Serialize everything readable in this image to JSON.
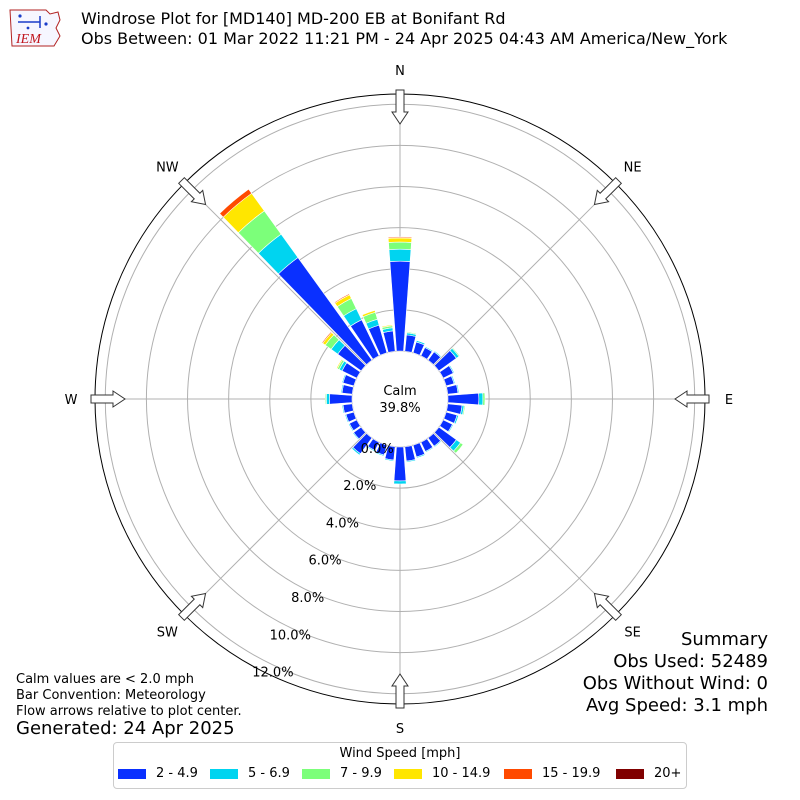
{
  "header": {
    "title": "Windrose Plot for [MD140] MD-200 EB at Bonifant Rd",
    "subtitle": "Obs Between: 01 Mar 2022 11:21 PM - 24 Apr 2025 04:43 AM America/New_York",
    "logo_text": "IEM"
  },
  "footer": {
    "calm_note": "Calm values are < 2.0 mph",
    "bar_convention": "Bar Convention: Meteorology",
    "flow_note": "Flow arrows relative to plot center.",
    "generated": "Generated: 24 Apr 2025"
  },
  "summary": {
    "heading": "Summary",
    "obs_used": "Obs Used: 52489",
    "obs_without_wind": "Obs Without Wind: 0",
    "avg_speed": "Avg Speed: 3.1 mph"
  },
  "legend": {
    "title": "Wind Speed [mph]",
    "items": [
      {
        "label": "2 - 4.9",
        "color": "#0a30ff"
      },
      {
        "label": "5 - 6.9",
        "color": "#00d4f0"
      },
      {
        "label": "7 - 9.9",
        "color": "#7cff7a"
      },
      {
        "label": "10 - 14.9",
        "color": "#ffe600"
      },
      {
        "label": "15 - 19.9",
        "color": "#ff4a00"
      },
      {
        "label": "20+",
        "color": "#800000"
      }
    ]
  },
  "chart_data": {
    "type": "windrose",
    "calm_label": "Calm",
    "calm_value": "39.8%",
    "radial_ticks": [
      "0.0%",
      "2.0%",
      "4.0%",
      "6.0%",
      "8.0%",
      "10.0%",
      "12.0%"
    ],
    "radial_tick_values": [
      0,
      2,
      4,
      6,
      8,
      10,
      12
    ],
    "radial_max": 12.5,
    "compass_labels": [
      "N",
      "NE",
      "E",
      "SE",
      "S",
      "SW",
      "W",
      "NW"
    ],
    "speed_bins": [
      "2 - 4.9",
      "5 - 6.9",
      "7 - 9.9",
      "10 - 14.9",
      "15 - 19.9",
      "20+"
    ],
    "grid": true,
    "sectors": [
      {
        "dir": 0,
        "values": [
          4.37,
          0.58,
          0.35,
          0.2,
          0.05,
          0.0
        ]
      },
      {
        "dir": 10,
        "values": [
          0.8,
          0.1,
          0.05,
          0.02,
          0.0,
          0.0
        ]
      },
      {
        "dir": 20,
        "values": [
          0.55,
          0.08,
          0.03,
          0.0,
          0.0,
          0.0
        ]
      },
      {
        "dir": 30,
        "values": [
          0.45,
          0.05,
          0.0,
          0.0,
          0.0,
          0.0
        ]
      },
      {
        "dir": 40,
        "values": [
          0.5,
          0.05,
          0.0,
          0.0,
          0.0,
          0.0
        ]
      },
      {
        "dir": 50,
        "values": [
          1.05,
          0.15,
          0.05,
          0.0,
          0.0,
          0.0
        ]
      },
      {
        "dir": 60,
        "values": [
          0.55,
          0.05,
          0.0,
          0.0,
          0.0,
          0.0
        ]
      },
      {
        "dir": 70,
        "values": [
          0.4,
          0.05,
          0.0,
          0.0,
          0.0,
          0.0
        ]
      },
      {
        "dir": 80,
        "values": [
          0.5,
          0.05,
          0.0,
          0.0,
          0.0,
          0.0
        ]
      },
      {
        "dir": 90,
        "values": [
          1.5,
          0.2,
          0.1,
          0.0,
          0.0,
          0.0
        ]
      },
      {
        "dir": 100,
        "values": [
          0.7,
          0.1,
          0.05,
          0.0,
          0.0,
          0.0
        ]
      },
      {
        "dir": 110,
        "values": [
          0.55,
          0.08,
          0.03,
          0.0,
          0.0,
          0.0
        ]
      },
      {
        "dir": 120,
        "values": [
          0.5,
          0.05,
          0.0,
          0.0,
          0.0,
          0.0
        ]
      },
      {
        "dir": 130,
        "values": [
          1.05,
          0.25,
          0.15,
          0.0,
          0.0,
          0.0
        ]
      },
      {
        "dir": 140,
        "values": [
          0.5,
          0.05,
          0.0,
          0.0,
          0.0,
          0.0
        ]
      },
      {
        "dir": 150,
        "values": [
          0.5,
          0.05,
          0.0,
          0.0,
          0.0,
          0.0
        ]
      },
      {
        "dir": 160,
        "values": [
          0.6,
          0.05,
          0.0,
          0.0,
          0.0,
          0.0
        ]
      },
      {
        "dir": 170,
        "values": [
          0.7,
          0.05,
          0.0,
          0.0,
          0.0,
          0.0
        ]
      },
      {
        "dir": 180,
        "values": [
          1.65,
          0.15,
          0.0,
          0.0,
          0.0,
          0.0
        ]
      },
      {
        "dir": 190,
        "values": [
          0.65,
          0.05,
          0.0,
          0.0,
          0.0,
          0.0
        ]
      },
      {
        "dir": 200,
        "values": [
          0.5,
          0.05,
          0.0,
          0.0,
          0.0,
          0.0
        ]
      },
      {
        "dir": 210,
        "values": [
          0.45,
          0.05,
          0.0,
          0.0,
          0.0,
          0.0
        ]
      },
      {
        "dir": 220,
        "values": [
          0.95,
          0.08,
          0.0,
          0.0,
          0.0,
          0.0
        ]
      },
      {
        "dir": 230,
        "values": [
          0.45,
          0.05,
          0.0,
          0.0,
          0.0,
          0.0
        ]
      },
      {
        "dir": 240,
        "values": [
          0.4,
          0.05,
          0.0,
          0.0,
          0.0,
          0.0
        ]
      },
      {
        "dir": 250,
        "values": [
          0.4,
          0.05,
          0.0,
          0.0,
          0.0,
          0.0
        ]
      },
      {
        "dir": 260,
        "values": [
          0.45,
          0.05,
          0.0,
          0.0,
          0.0,
          0.0
        ]
      },
      {
        "dir": 270,
        "values": [
          1.1,
          0.15,
          0.05,
          0.0,
          0.0,
          0.0
        ]
      },
      {
        "dir": 280,
        "values": [
          0.5,
          0.05,
          0.0,
          0.0,
          0.0,
          0.0
        ]
      },
      {
        "dir": 290,
        "values": [
          0.55,
          0.05,
          0.0,
          0.0,
          0.0,
          0.0
        ]
      },
      {
        "dir": 300,
        "values": [
          0.8,
          0.15,
          0.1,
          0.05,
          0.0,
          0.0
        ]
      },
      {
        "dir": 310,
        "values": [
          1.4,
          0.4,
          0.35,
          0.15,
          0.05,
          0.0
        ]
      },
      {
        "dir": 320,
        "values": [
          6.15,
          1.4,
          1.4,
          1.05,
          0.25,
          0.0
        ]
      },
      {
        "dir": 330,
        "values": [
          1.95,
          0.6,
          0.55,
          0.2,
          0.05,
          0.0
        ]
      },
      {
        "dir": 340,
        "values": [
          1.4,
          0.3,
          0.35,
          0.1,
          0.0,
          0.0
        ]
      },
      {
        "dir": 350,
        "values": [
          1.0,
          0.15,
          0.1,
          0.05,
          0.0,
          0.0
        ]
      }
    ]
  }
}
